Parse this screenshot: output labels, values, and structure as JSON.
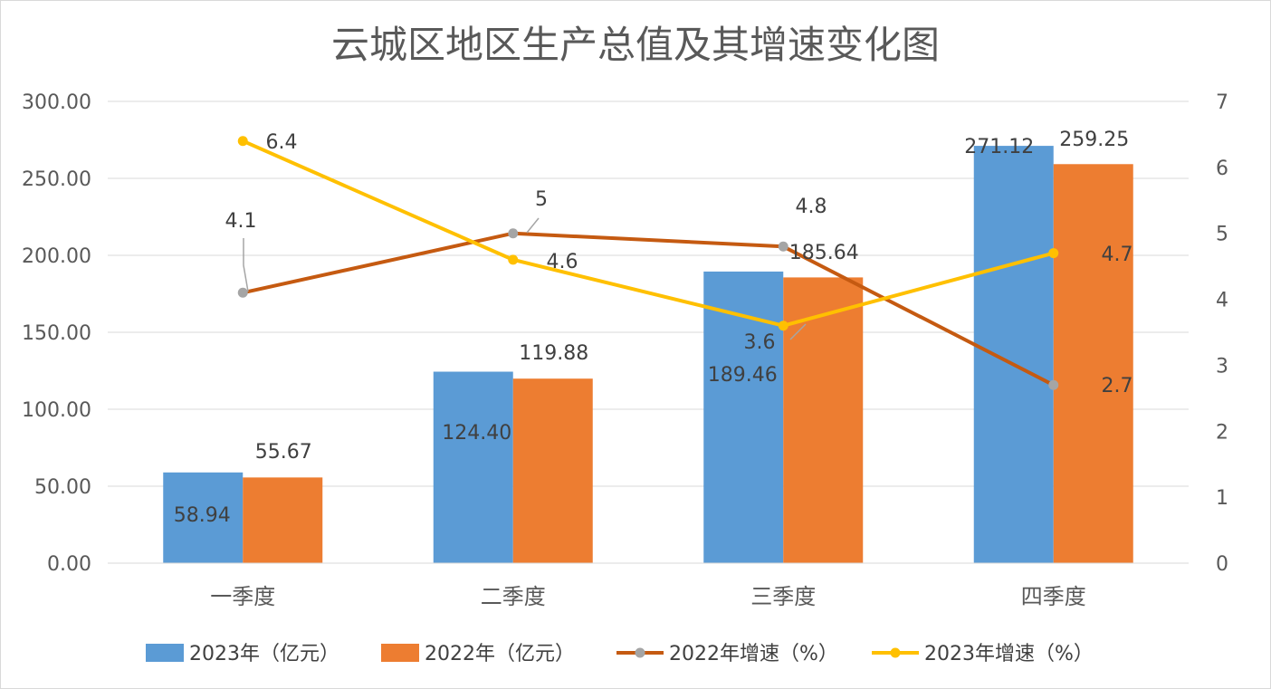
{
  "chart_data": {
    "type": "bar",
    "title": "云城区地区生产总值及其增速变化图",
    "categories": [
      "一季度",
      "二季度",
      "三季度",
      "四季度"
    ],
    "y_axis": {
      "ylim": [
        0,
        300
      ],
      "ticks": [
        "0.00",
        "50.00",
        "100.00",
        "150.00",
        "200.00",
        "250.00",
        "300.00"
      ],
      "tick_values": [
        0,
        50,
        100,
        150,
        200,
        250,
        300
      ]
    },
    "y2_axis": {
      "ylim": [
        0,
        7
      ],
      "ticks": [
        "0",
        "1",
        "2",
        "3",
        "4",
        "5",
        "6",
        "7"
      ],
      "tick_values": [
        0,
        1,
        2,
        3,
        4,
        5,
        6,
        7
      ]
    },
    "grid": true,
    "legend_position": "bottom",
    "bar_series": [
      {
        "name": "2023年（亿元）",
        "color": "#5b9bd5",
        "values": [
          58.94,
          124.4,
          189.46,
          271.12
        ],
        "labels": [
          "58.94",
          "124.40",
          "189.46",
          "271.12"
        ]
      },
      {
        "name": "2022年（亿元）",
        "color": "#ed7d31",
        "values": [
          55.67,
          119.88,
          185.64,
          259.25
        ],
        "labels": [
          "55.67",
          "119.88",
          "185.64",
          "259.25"
        ]
      }
    ],
    "line_series": [
      {
        "name": "2022年增速（%）",
        "color": "#c55a11",
        "marker_color": "#a5a5a5",
        "axis": "secondary",
        "values": [
          4.1,
          5,
          4.8,
          2.7
        ],
        "labels": [
          "4.1",
          "5",
          "4.8",
          "2.7"
        ]
      },
      {
        "name": "2023年增速（%）",
        "color": "#ffc000",
        "marker_color": "#ffc000",
        "axis": "secondary",
        "values": [
          6.4,
          4.6,
          3.6,
          4.7
        ],
        "labels": [
          "6.4",
          "4.6",
          "3.6",
          "4.7"
        ]
      }
    ]
  }
}
